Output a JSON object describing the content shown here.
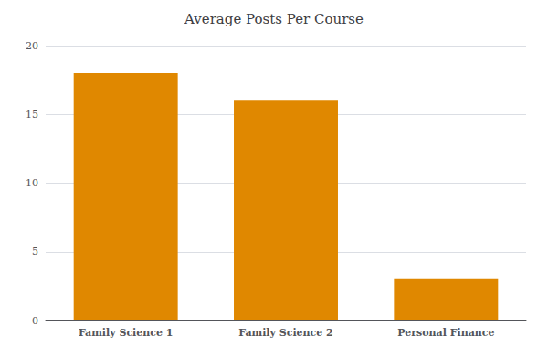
{
  "chart_data": {
    "type": "bar",
    "title": "Average Posts Per Course",
    "categories": [
      "Family Science 1",
      "Family Science 2",
      "Personal Finance"
    ],
    "values": [
      18,
      16,
      3
    ],
    "color": "#E08800",
    "ylim": [
      0,
      20
    ],
    "yticks": [
      0,
      5,
      10,
      15,
      20
    ],
    "grid": true
  }
}
